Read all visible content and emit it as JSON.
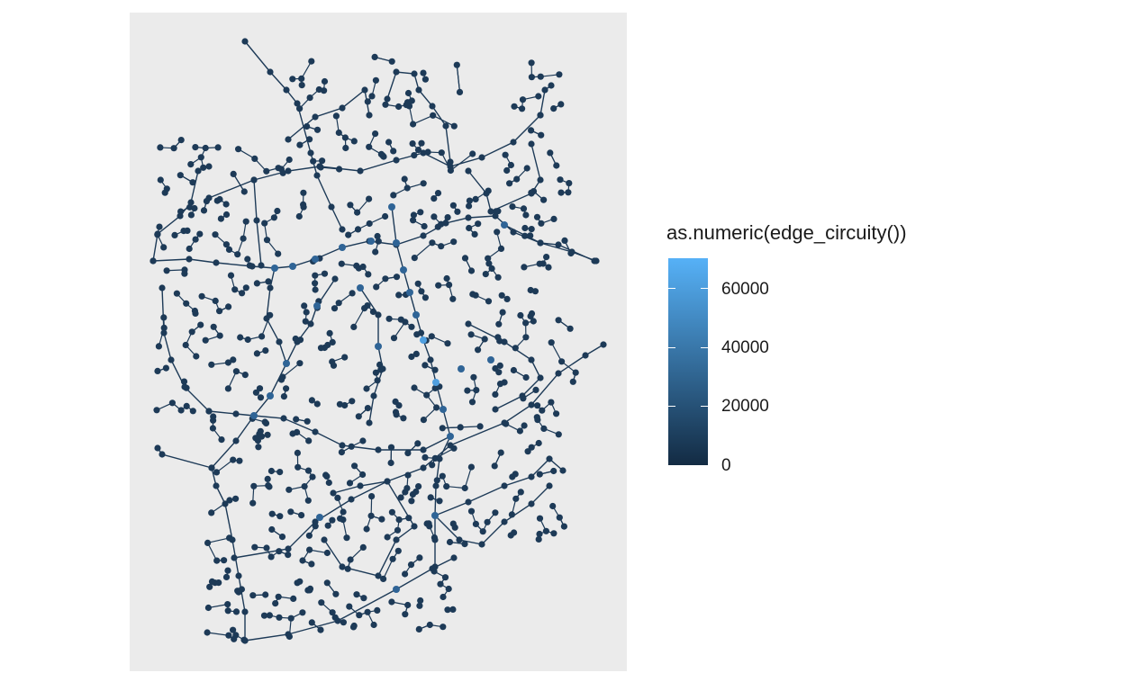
{
  "legend": {
    "title": "as.numeric(edge_circuity())",
    "labels": [
      "60000",
      "40000",
      "20000",
      "0"
    ],
    "values": [
      60000,
      40000,
      20000,
      0
    ],
    "range": [
      0,
      70000
    ],
    "low_color": "#132b43",
    "high_color": "#56b1f7"
  },
  "chart_data": {
    "type": "scatter",
    "description_kind": "network",
    "color_scale": {
      "variable": "as.numeric(edge_circuity())",
      "min": 0,
      "max": 70000,
      "low": "#132b43",
      "high": "#56b1f7"
    },
    "panel_background": "#ebebeb",
    "grid": false,
    "axes": false,
    "legend_position": "right"
  }
}
